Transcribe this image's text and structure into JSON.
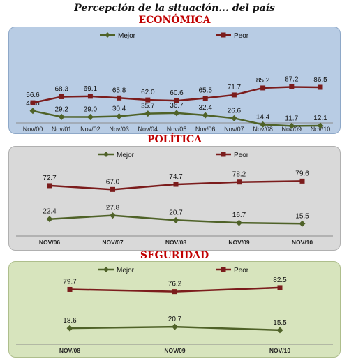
{
  "title": "Percepción de la situación... del país",
  "chart_data": [
    {
      "type": "line",
      "title": "ECONÓMICA",
      "categories": [
        "Nov/00",
        "Nov/01",
        "Nov/02",
        "Nov/03",
        "Nov/04",
        "Nov/05",
        "Nov/06",
        "Nov/07",
        "Nov/08",
        "Nov/09",
        "Nov/10"
      ],
      "series": [
        {
          "name": "Mejor",
          "color": "#4f6228",
          "values": [
            40.8,
            29.2,
            29.0,
            30.4,
            35.7,
            36.7,
            32.4,
            26.6,
            14.4,
            11.7,
            12.1
          ]
        },
        {
          "name": "Peor",
          "color": "#7b1c1c",
          "values": [
            56.6,
            68.3,
            69.1,
            65.8,
            62.0,
            60.6,
            65.5,
            71.7,
            85.2,
            87.2,
            86.5
          ]
        }
      ],
      "ylim": [
        0,
        100
      ]
    },
    {
      "type": "line",
      "title": "POLÍTICA",
      "categories": [
        "NOV/06",
        "NOV/07",
        "NOV/08",
        "NOV/09",
        "NOV/10"
      ],
      "series": [
        {
          "name": "Mejor",
          "color": "#4f6228",
          "values": [
            22.4,
            27.8,
            20.7,
            16.7,
            15.5
          ]
        },
        {
          "name": "Peor",
          "color": "#7b1c1c",
          "values": [
            72.7,
            67.0,
            74.7,
            78.2,
            79.6
          ]
        }
      ],
      "ylim": [
        0,
        100
      ]
    },
    {
      "type": "line",
      "title": "SEGURIDAD",
      "categories": [
        "NOV/08",
        "NOV/09",
        "NOV/10"
      ],
      "series": [
        {
          "name": "Mejor",
          "color": "#4f6228",
          "values": [
            18.6,
            20.7,
            15.5
          ]
        },
        {
          "name": "Peor",
          "color": "#7b1c1c",
          "values": [
            79.7,
            76.2,
            82.5
          ]
        }
      ],
      "ylim": [
        0,
        100
      ]
    }
  ]
}
